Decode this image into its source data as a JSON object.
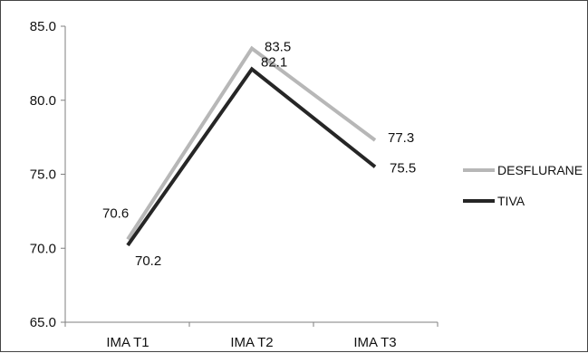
{
  "chart_data": {
    "type": "line",
    "categories": [
      "IMA T1",
      "IMA T2",
      "IMA T3"
    ],
    "series": [
      {
        "name": "DESFLURANE",
        "values": [
          70.6,
          83.5,
          77.3
        ],
        "color": "#b7b7b7"
      },
      {
        "name": "TIVA",
        "values": [
          70.2,
          82.1,
          75.5
        ],
        "color": "#262626"
      }
    ],
    "ylim": [
      65.0,
      85.0
    ],
    "yticks": [
      "65.0",
      "70.0",
      "75.0",
      "80.0",
      "85.0"
    ],
    "grid": false,
    "legend_position": "right"
  }
}
